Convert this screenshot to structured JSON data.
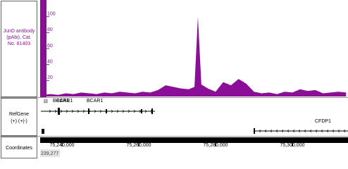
{
  "chart_data": {
    "type": "area",
    "track_label": "JunD antibody (pAbi), Cat. No. 61403",
    "color": "#8b0f96",
    "x": [
      75235000,
      75237000,
      75239000,
      75241000,
      75243000,
      75245000,
      75247000,
      75249000,
      75251000,
      75253000,
      75255000,
      75257000,
      75259000,
      75261000,
      75263000,
      75265000,
      75267000,
      75269000,
      75271000,
      75273000,
      75274500,
      75275400,
      75276300,
      75278000,
      75280000,
      75282000,
      75284000,
      75286000,
      75288000,
      75290000,
      75292000,
      75294000,
      75296000,
      75298000,
      75300000,
      75302000,
      75304000,
      75306000,
      75308000,
      75310000,
      75312000,
      75314000
    ],
    "values": [
      2,
      3,
      2,
      4,
      3,
      5,
      4,
      3,
      5,
      4,
      6,
      5,
      4,
      6,
      5,
      8,
      14,
      12,
      10,
      9,
      12,
      100,
      15,
      10,
      6,
      18,
      14,
      22,
      16,
      6,
      4,
      5,
      3,
      6,
      5,
      9,
      7,
      8,
      4,
      5,
      6,
      5
    ],
    "xlim": [
      75234300,
      75314500
    ],
    "ylim": [
      0,
      120
    ],
    "yticks": [
      20,
      40,
      60,
      80,
      100
    ],
    "xticks": [
      {
        "value": 75240000,
        "label": "75,240,000"
      },
      {
        "value": 75260000,
        "label": "75,260,000"
      },
      {
        "value": 75280000,
        "label": "75,280,000"
      },
      {
        "value": 75300000,
        "label": "75,300,000"
      }
    ]
  },
  "refgene": {
    "label": "RefGene",
    "strand": "(+) (+|-)",
    "genes": [
      "BCAR1",
      "BCAR1",
      "BCAR1",
      "CFDP1"
    ]
  },
  "coordinates": {
    "label": "Coordinates",
    "position": "239,277"
  }
}
